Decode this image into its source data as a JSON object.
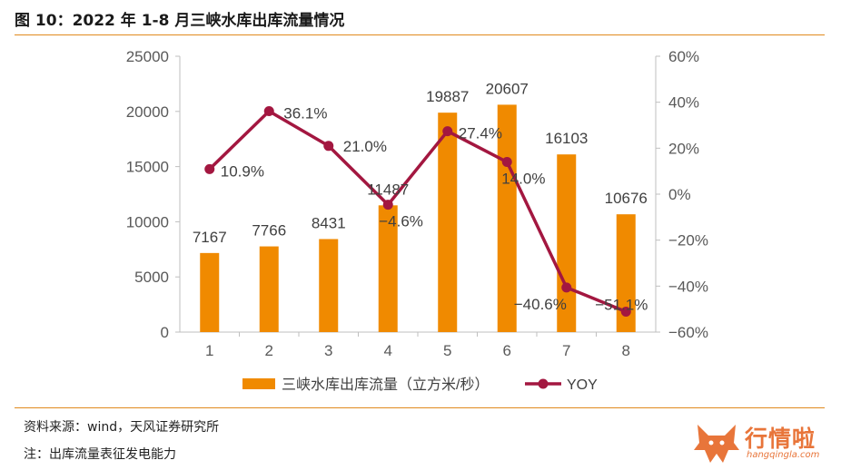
{
  "title": "图 10：2022 年 1-8 月三峡水库出库流量情况",
  "source": "资料来源：wind，天风证券研究所",
  "note": "注：出库流量表征发电能力",
  "watermark": {
    "text": "行情啦",
    "url": "hangqingla.com"
  },
  "chart_data": {
    "type": "bar",
    "categories": [
      "1",
      "2",
      "3",
      "4",
      "5",
      "6",
      "7",
      "8"
    ],
    "series": [
      {
        "name": "三峡水库出库流量（立方米/秒）",
        "type": "bar",
        "axis": "left",
        "color": "#f08a00",
        "values": [
          7167,
          7766,
          8431,
          11487,
          19887,
          20607,
          16103,
          10676
        ],
        "labels": [
          "7167",
          "7766",
          "8431",
          "11487",
          "19887",
          "20607",
          "16103",
          "10676"
        ]
      },
      {
        "name": "YOY",
        "type": "line",
        "axis": "right",
        "color": "#a31740",
        "values": [
          10.9,
          36.1,
          21.0,
          -4.6,
          27.4,
          14.0,
          -40.6,
          -51.1
        ],
        "labels": [
          "10.9%",
          "36.1%",
          "21.0%",
          "−4.6%",
          "27.4%",
          "14.0%",
          "−40.6%",
          "−51.1%"
        ]
      }
    ],
    "y_left": {
      "range": [
        0,
        25000
      ],
      "ticks": [
        "0",
        "5000",
        "10000",
        "15000",
        "20000",
        "25000"
      ],
      "tick_values": [
        0,
        5000,
        10000,
        15000,
        20000,
        25000
      ]
    },
    "y_right": {
      "range": [
        -60,
        60
      ],
      "ticks": [
        "−60%",
        "−40%",
        "−20%",
        "0%",
        "20%",
        "40%",
        "60%"
      ],
      "tick_values": [
        -60,
        -40,
        -20,
        0,
        20,
        40,
        60
      ]
    },
    "legend_position": "bottom",
    "grid": false
  }
}
